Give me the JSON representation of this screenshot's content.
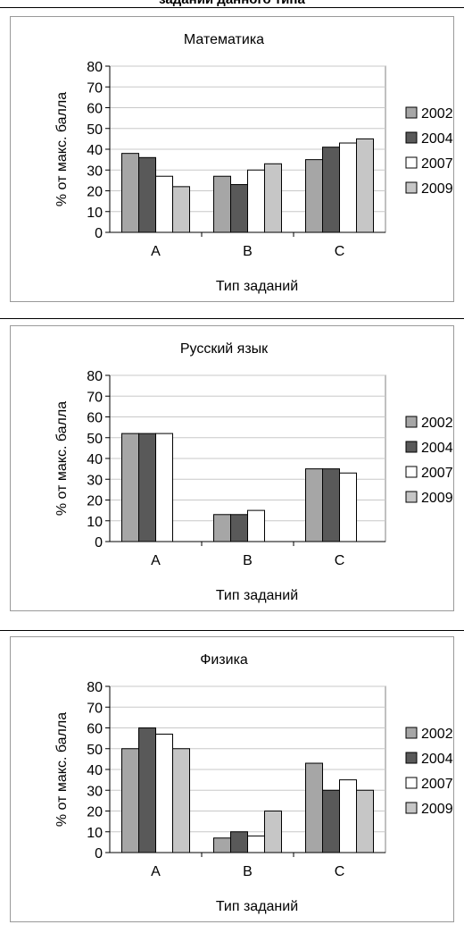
{
  "page_header": "заданий данного типа",
  "chart_data": [
    {
      "type": "bar",
      "title": "Математика",
      "xlabel": "Тип заданий",
      "ylabel": "% от макс. балла",
      "categories": [
        "А",
        "В",
        "С"
      ],
      "ylim": [
        0,
        80
      ],
      "yticks": [
        "0",
        "10",
        "20",
        "30",
        "40",
        "50",
        "60",
        "70",
        "80"
      ],
      "grid": true,
      "legend_position": "right",
      "series": [
        {
          "name": "2002",
          "color": "#a6a6a6",
          "values": [
            38,
            27,
            35
          ]
        },
        {
          "name": "2004",
          "color": "#595959",
          "values": [
            36,
            23,
            41
          ]
        },
        {
          "name": "2007",
          "color": "#ffffff",
          "values": [
            27,
            30,
            43
          ]
        },
        {
          "name": "2009",
          "color": "#c6c6c6",
          "values": [
            22,
            33,
            45
          ]
        }
      ]
    },
    {
      "type": "bar",
      "title": "Русский язык",
      "xlabel": "Тип заданий",
      "ylabel": "% от макс. балла",
      "categories": [
        "А",
        "В",
        "С"
      ],
      "ylim": [
        0,
        80
      ],
      "yticks": [
        "0",
        "10",
        "20",
        "30",
        "40",
        "50",
        "60",
        "70",
        "80"
      ],
      "grid": true,
      "legend_position": "right",
      "series": [
        {
          "name": "2002",
          "color": "#a6a6a6",
          "values": [
            52,
            13,
            35
          ]
        },
        {
          "name": "2004",
          "color": "#595959",
          "values": [
            52,
            13,
            35
          ]
        },
        {
          "name": "2007",
          "color": "#ffffff",
          "values": [
            52,
            15,
            33
          ]
        },
        {
          "name": "2009",
          "color": "#c6c6c6",
          "values": [
            null,
            null,
            null
          ]
        }
      ]
    },
    {
      "type": "bar",
      "title": "Физика",
      "xlabel": "Тип заданий",
      "ylabel": "% от макс. балла",
      "categories": [
        "А",
        "В",
        "С"
      ],
      "ylim": [
        0,
        80
      ],
      "yticks": [
        "0",
        "10",
        "20",
        "30",
        "40",
        "50",
        "60",
        "70",
        "80"
      ],
      "grid": true,
      "legend_position": "right",
      "series": [
        {
          "name": "2002",
          "color": "#a6a6a6",
          "values": [
            50,
            7,
            43
          ]
        },
        {
          "name": "2004",
          "color": "#595959",
          "values": [
            60,
            10,
            30
          ]
        },
        {
          "name": "2007",
          "color": "#ffffff",
          "values": [
            57,
            8,
            35
          ]
        },
        {
          "name": "2009",
          "color": "#c6c6c6",
          "values": [
            50,
            20,
            30
          ]
        }
      ]
    }
  ]
}
